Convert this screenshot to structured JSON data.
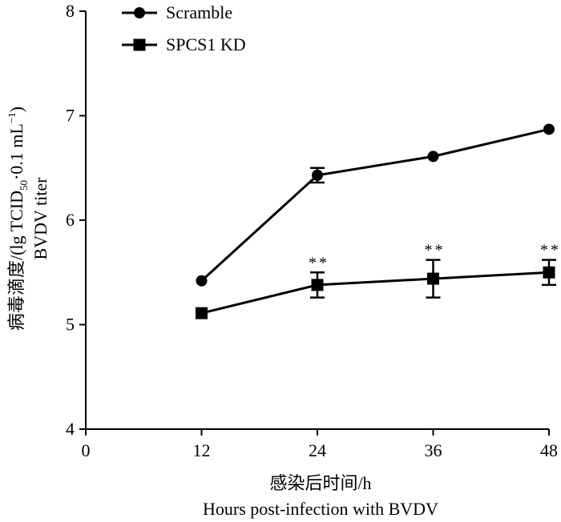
{
  "chart_data": {
    "type": "line",
    "x": [
      12,
      24,
      36,
      48
    ],
    "xlim": [
      0,
      48
    ],
    "ylim": [
      4,
      8
    ],
    "xticks": [
      "0",
      "12",
      "24",
      "36",
      "48"
    ],
    "yticks": [
      "4",
      "5",
      "6",
      "7",
      "8"
    ],
    "xlabel_cn": "感染后时间/h",
    "xlabel_en": "Hours post-infection with BVDV",
    "ylabel_cn_pre": "病毒滴度/(lg TCID",
    "ylabel_sub": "50",
    "ylabel_mid": "·0.1 mL",
    "ylabel_sup": "−1",
    "ylabel_post": ")",
    "ylabel_en": "BVDV titer",
    "series": [
      {
        "name": "Scramble",
        "marker": "circle",
        "values": [
          5.42,
          6.43,
          6.61,
          6.87
        ],
        "errors": [
          0.0,
          0.07,
          0.0,
          0.0
        ],
        "significance": [
          "",
          "",
          "",
          ""
        ]
      },
      {
        "name": "SPCS1 KD",
        "marker": "square",
        "values": [
          5.11,
          5.38,
          5.44,
          5.5
        ],
        "errors": [
          0.0,
          0.12,
          0.18,
          0.12
        ],
        "significance": [
          "",
          "**",
          "**",
          "**"
        ]
      }
    ]
  }
}
